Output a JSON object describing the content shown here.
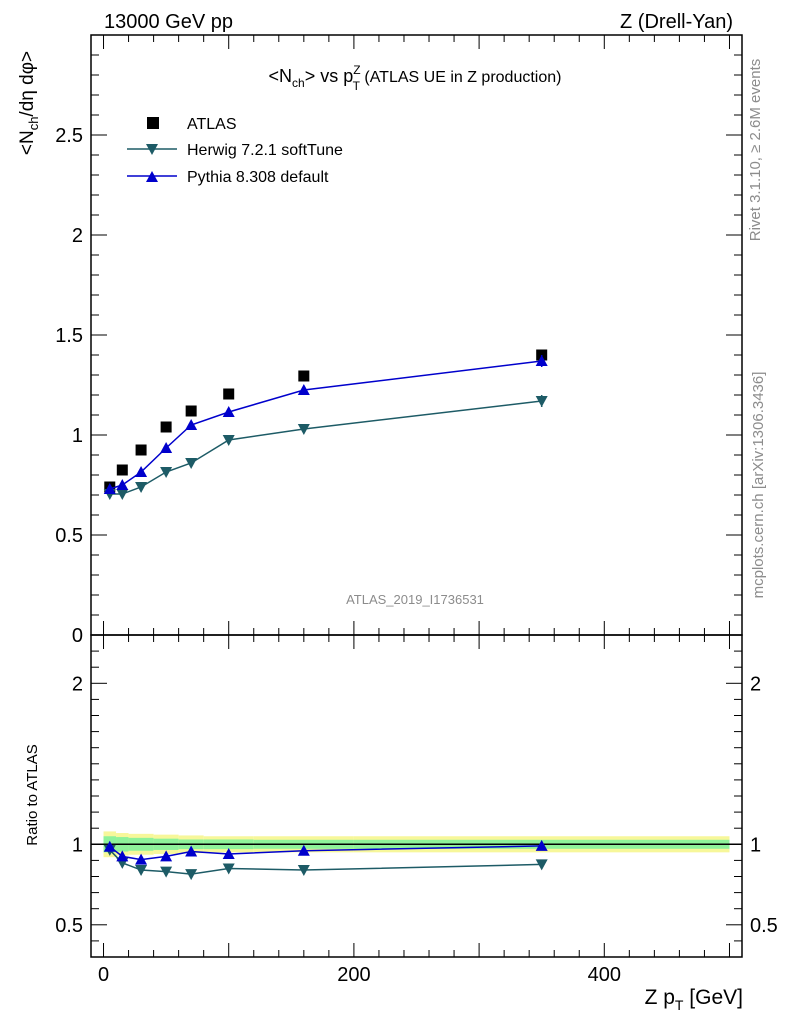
{
  "header": {
    "left": "13000 GeV pp",
    "right": "Z (Drell-Yan)"
  },
  "title": {
    "prefix": "<N",
    "sub_ch": "ch",
    "middle": "> vs p",
    "sup_z": "Z",
    "sub_t": "T",
    "suffix": " (ATLAS UE in Z production)"
  },
  "side_text": {
    "rivet": "Rivet 3.1.10, ≥ 2.6M events",
    "mcplots": "mcplots.cern.ch [arXiv:1306.3436]"
  },
  "watermark": "ATLAS_2019_I1736531",
  "axes": {
    "ylabel_main": "<N_ch/dη dφ>",
    "ylabel_ratio": "Ratio to ATLAS",
    "xlabel_main": "Z p",
    "xlabel_sub": "T",
    "xlabel_unit": " [GeV]"
  },
  "legend": {
    "atlas": "ATLAS",
    "herwig": "Herwig 7.2.1 softTune",
    "pythia": "Pythia 8.308 default"
  },
  "colors": {
    "atlas": "#000000",
    "herwig": "#1d5b66",
    "pythia": "#0000cc",
    "band_inner": "#8ef29a",
    "band_outer": "#f7f79a"
  },
  "chart_data": [
    {
      "type": "scatter",
      "panel": "main",
      "xlim": [
        -10,
        510
      ],
      "ylim": [
        0,
        3.0
      ],
      "yticks": [
        0,
        0.5,
        1,
        1.5,
        2,
        2.5
      ],
      "ytick_labels": [
        "0",
        "0.5",
        "1",
        "1.5",
        "2",
        "2.5"
      ],
      "x": [
        5,
        15,
        30,
        50,
        70,
        100,
        160,
        350
      ],
      "series": [
        {
          "name": "ATLAS",
          "marker": "square",
          "values": [
            0.74,
            0.825,
            0.925,
            1.04,
            1.12,
            1.205,
            1.295,
            1.4
          ],
          "errors": [
            0.01,
            0.01,
            0.01,
            0.01,
            0.01,
            0.01,
            0.015,
            0.02
          ]
        },
        {
          "name": "Herwig 7.2.1 softTune",
          "marker": "triangle-down",
          "values": [
            0.705,
            0.705,
            0.74,
            0.815,
            0.86,
            0.975,
            1.03,
            1.17
          ],
          "errors": [
            0.005,
            0.005,
            0.005,
            0.005,
            0.005,
            0.008,
            0.01,
            0.03
          ]
        },
        {
          "name": "Pythia 8.308 default",
          "marker": "triangle-up",
          "values": [
            0.73,
            0.75,
            0.815,
            0.935,
            1.05,
            1.115,
            1.225,
            1.37
          ],
          "errors": [
            0.005,
            0.005,
            0.005,
            0.005,
            0.01,
            0.01,
            0.015,
            0.03
          ]
        }
      ]
    },
    {
      "type": "line",
      "panel": "ratio",
      "xlim": [
        -10,
        510
      ],
      "ylim": [
        0.3,
        2.3
      ],
      "xticks": [
        0,
        200,
        400
      ],
      "xtick_labels": [
        "0",
        "200",
        "400"
      ],
      "yticks": [
        0.5,
        1,
        2
      ],
      "ytick_labels": [
        "0.5",
        "1",
        "2"
      ],
      "x": [
        5,
        15,
        30,
        50,
        70,
        100,
        160,
        350
      ],
      "band_x": [
        0,
        10,
        20,
        40,
        60,
        80,
        120,
        200,
        500
      ],
      "band_inner": [
        0.05,
        0.045,
        0.04,
        0.035,
        0.03,
        0.03,
        0.028,
        0.028
      ],
      "band_outer": [
        0.08,
        0.07,
        0.065,
        0.06,
        0.055,
        0.05,
        0.05,
        0.05
      ],
      "series": [
        {
          "name": "Herwig 7.2.1 softTune",
          "marker": "triangle-down",
          "values": [
            0.965,
            0.885,
            0.84,
            0.83,
            0.815,
            0.85,
            0.84,
            0.875
          ],
          "errors": [
            0.006,
            0.006,
            0.006,
            0.006,
            0.006,
            0.008,
            0.01,
            0.015
          ]
        },
        {
          "name": "Pythia 8.308 default",
          "marker": "triangle-up",
          "values": [
            0.985,
            0.925,
            0.905,
            0.925,
            0.955,
            0.94,
            0.96,
            0.99
          ],
          "errors": [
            0.006,
            0.006,
            0.006,
            0.006,
            0.01,
            0.01,
            0.012,
            0.025
          ]
        }
      ]
    }
  ]
}
